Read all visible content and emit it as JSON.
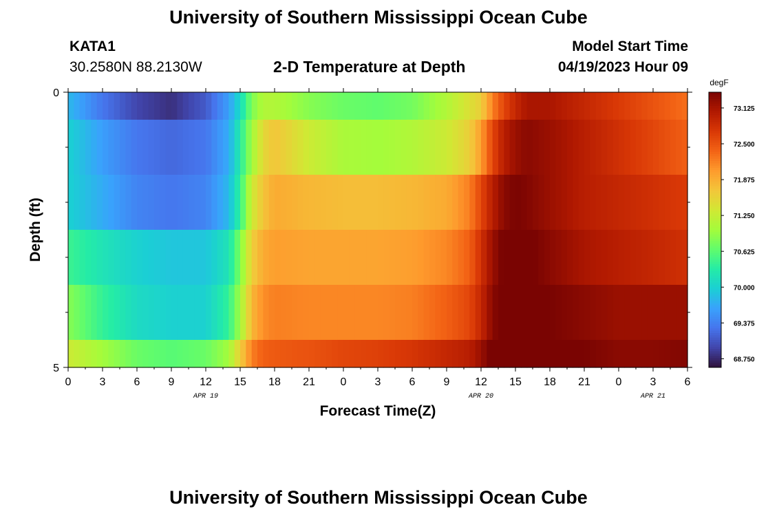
{
  "page": {
    "title_top": "University of Southern Mississippi Ocean Cube",
    "title_bottom": "University of Southern Mississippi Ocean Cube",
    "station_id": "KATA1",
    "station_coords": "30.2580N  88.2130W",
    "plot_title": "2-D Temperature at Depth",
    "model_start_label": "Model Start Time",
    "model_start_value": "04/19/2023 Hour 09"
  },
  "chart_data": {
    "type": "heatmap",
    "title": "2-D Temperature at Depth",
    "xlabel": "Forecast Time(Z)",
    "ylabel": "Depth (ft)",
    "x_tick_labels": [
      "0",
      "3",
      "6",
      "9",
      "12",
      "15",
      "18",
      "21",
      "0",
      "3",
      "6",
      "9",
      "12",
      "15",
      "18",
      "21",
      "0",
      "3",
      "6"
    ],
    "date_labels": [
      {
        "label": "APR 19",
        "hour_index": 12
      },
      {
        "label": "APR 20",
        "hour_index": 36
      },
      {
        "label": "APR 21",
        "hour_index": 51
      }
    ],
    "x_range_hours": [
      0,
      54
    ],
    "y_tick_labels": [
      "0",
      "5"
    ],
    "y_range_ft": [
      0,
      5
    ],
    "layer_edges_ft": [
      0,
      0.5,
      1.5,
      2.5,
      3.5,
      4.5,
      5
    ],
    "colorbar": {
      "unit": "degF",
      "min": 68.6,
      "max": 73.4,
      "ticks": [
        "73.125",
        "72.500",
        "71.875",
        "71.250",
        "70.625",
        "70.000",
        "69.375",
        "68.750"
      ],
      "colors": [
        "#30123b",
        "#4145ab",
        "#4675ed",
        "#39a2fc",
        "#1bcfd4",
        "#24eca6",
        "#61fc6c",
        "#a4fc3b",
        "#d1e834",
        "#f3c63a",
        "#fe9b2d",
        "#f36315",
        "#d93806",
        "#b11901",
        "#7a0402"
      ]
    },
    "profiles_degF": [
      {
        "depth_ft": 0,
        "hours": [
          0,
          3,
          6,
          9,
          12,
          14,
          15,
          16,
          17,
          18,
          21,
          24,
          27,
          30,
          33,
          36,
          37,
          38,
          39,
          40,
          42,
          45,
          48,
          51,
          54
        ],
        "temps": [
          69.8,
          69.3,
          68.95,
          68.8,
          69.1,
          69.6,
          70.1,
          70.8,
          71.1,
          71.1,
          70.85,
          70.7,
          70.65,
          70.75,
          71.1,
          71.6,
          72.2,
          72.6,
          72.9,
          73.1,
          73.1,
          72.9,
          72.7,
          72.5,
          72.3
        ]
      },
      {
        "depth_ft": 1,
        "hours": [
          0,
          3,
          6,
          9,
          12,
          14,
          15,
          16,
          17,
          18,
          21,
          24,
          27,
          30,
          33,
          35,
          36,
          37,
          38,
          39,
          40,
          42,
          45,
          48,
          51,
          54
        ],
        "temps": [
          70.0,
          69.6,
          69.3,
          69.2,
          69.3,
          69.7,
          70.3,
          71.0,
          71.5,
          71.7,
          71.3,
          71.05,
          71.0,
          71.1,
          71.3,
          71.6,
          72.0,
          72.6,
          73.0,
          73.2,
          73.3,
          73.2,
          73.0,
          72.8,
          72.6,
          72.4
        ]
      },
      {
        "depth_ft": 2,
        "hours": [
          0,
          3,
          6,
          9,
          12,
          14,
          15,
          16,
          17,
          18,
          21,
          24,
          27,
          30,
          33,
          35,
          36,
          37,
          38,
          39,
          40,
          42,
          45,
          48,
          51,
          54
        ],
        "temps": [
          70.0,
          69.7,
          69.4,
          69.3,
          69.4,
          69.8,
          70.4,
          71.3,
          71.7,
          71.9,
          71.8,
          71.75,
          71.75,
          71.8,
          71.9,
          72.2,
          72.6,
          73.0,
          73.3,
          73.4,
          73.35,
          73.2,
          73.0,
          72.9,
          72.8,
          72.7
        ]
      },
      {
        "depth_ft": 3,
        "hours": [
          0,
          3,
          6,
          9,
          12,
          14,
          15,
          16,
          17,
          18,
          21,
          24,
          27,
          30,
          33,
          35,
          36,
          37,
          38,
          39,
          40,
          42,
          45,
          48,
          51,
          54
        ],
        "temps": [
          70.45,
          70.2,
          70.0,
          69.9,
          69.9,
          70.2,
          70.8,
          71.6,
          71.9,
          72.0,
          71.95,
          71.95,
          71.95,
          72.0,
          72.15,
          72.4,
          72.8,
          73.2,
          73.45,
          73.5,
          73.45,
          73.3,
          73.1,
          73.0,
          72.9,
          72.8
        ]
      },
      {
        "depth_ft": 4,
        "hours": [
          0,
          3,
          6,
          9,
          12,
          14,
          15,
          16,
          17,
          18,
          21,
          24,
          27,
          30,
          33,
          35,
          36,
          37,
          38,
          39,
          40,
          42,
          45,
          48,
          51,
          54
        ],
        "temps": [
          70.85,
          70.4,
          70.1,
          70.0,
          70.0,
          70.4,
          71.0,
          71.8,
          72.1,
          72.2,
          72.15,
          72.15,
          72.15,
          72.2,
          72.4,
          72.6,
          72.9,
          73.3,
          73.5,
          73.6,
          73.55,
          73.4,
          73.3,
          73.2,
          73.2,
          73.2
        ]
      },
      {
        "depth_ft": 5,
        "hours": [
          0,
          3,
          6,
          9,
          12,
          14,
          15,
          16,
          17,
          18,
          21,
          24,
          27,
          30,
          33,
          35,
          36,
          37,
          38,
          39,
          40,
          42,
          45,
          48,
          51,
          54
        ],
        "temps": [
          71.3,
          71.0,
          70.7,
          70.6,
          70.7,
          71.0,
          71.6,
          72.2,
          72.4,
          72.45,
          72.5,
          72.6,
          72.65,
          72.75,
          72.9,
          73.0,
          73.2,
          73.5,
          73.65,
          73.7,
          73.6,
          73.5,
          73.4,
          73.3,
          73.3,
          73.35
        ]
      }
    ]
  }
}
